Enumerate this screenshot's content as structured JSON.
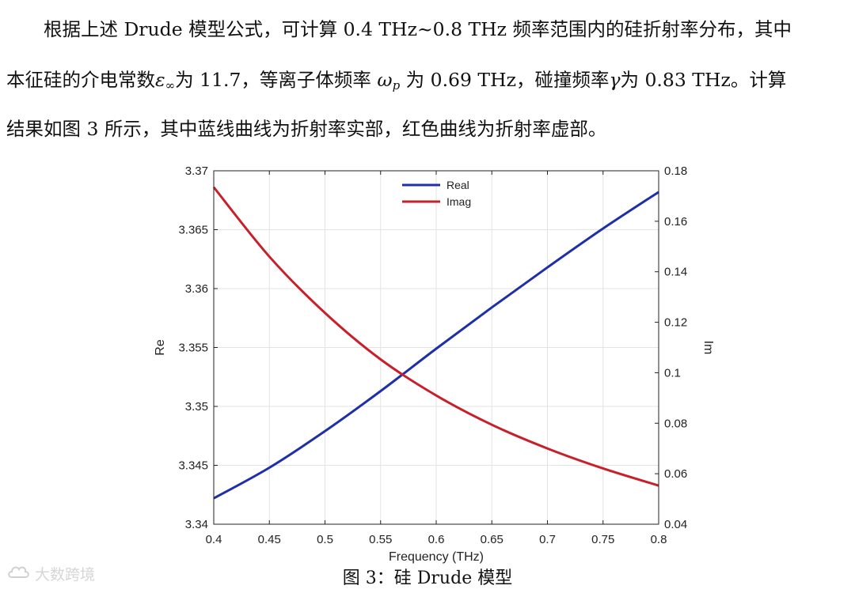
{
  "paragraph": {
    "line1": "　　根据上述 Drude 模型公式，可计算 0.4 THz~0.8 THz 频率范围内的硅折射率分布，其中",
    "line2_a": "本征硅的介电常数",
    "line2_sym1": "ε",
    "line2_sub1": "∞",
    "line2_b": "为 11.7，等离子体频率 ",
    "line2_sym2": "ω",
    "line2_sub2": "p",
    "line2_c": " 为 0.69 THz，碰撞频率",
    "line2_sym3": "γ",
    "line2_d": "为 0.83 THz。计算",
    "line3": "结果如图 3 所示，其中蓝线曲线为折射率实部，红色曲线为折射率虚部。"
  },
  "caption": "图 3：硅 Drude 模型",
  "watermark": {
    "text": "大数跨境",
    "icon": "cloud-logo-icon"
  },
  "chart_data": {
    "type": "line",
    "xlabel": "Frequency (THz)",
    "ylabel_left": "Re",
    "ylabel_right": "Im",
    "xlim": [
      0.4,
      0.8
    ],
    "ylim_left": [
      3.34,
      3.37
    ],
    "ylim_right": [
      0.04,
      0.18
    ],
    "xticks": [
      "0.4",
      "0.45",
      "0.5",
      "0.55",
      "0.6",
      "0.65",
      "0.7",
      "0.75",
      "0.8"
    ],
    "yticks_left": [
      "3.34",
      "3.345",
      "3.35",
      "3.355",
      "3.36",
      "3.365",
      "3.37"
    ],
    "yticks_right": [
      "0.04",
      "0.06",
      "0.08",
      "0.1",
      "0.12",
      "0.14",
      "0.16",
      "0.18"
    ],
    "grid": true,
    "legend_position": "top-center",
    "x": [
      0.4,
      0.45,
      0.5,
      0.55,
      0.6,
      0.65,
      0.7,
      0.75,
      0.8
    ],
    "series": [
      {
        "name": "Real",
        "axis": "left",
        "color": "#1f2fa8",
        "values": [
          3.3422,
          3.3448,
          3.3479,
          3.3513,
          3.3549,
          3.3584,
          3.3618,
          3.3651,
          3.3682
        ]
      },
      {
        "name": "Imag",
        "axis": "right",
        "color": "#c8202a",
        "values": [
          0.1735,
          0.146,
          0.1237,
          0.1053,
          0.091,
          0.0794,
          0.07,
          0.0621,
          0.0553
        ]
      }
    ]
  }
}
